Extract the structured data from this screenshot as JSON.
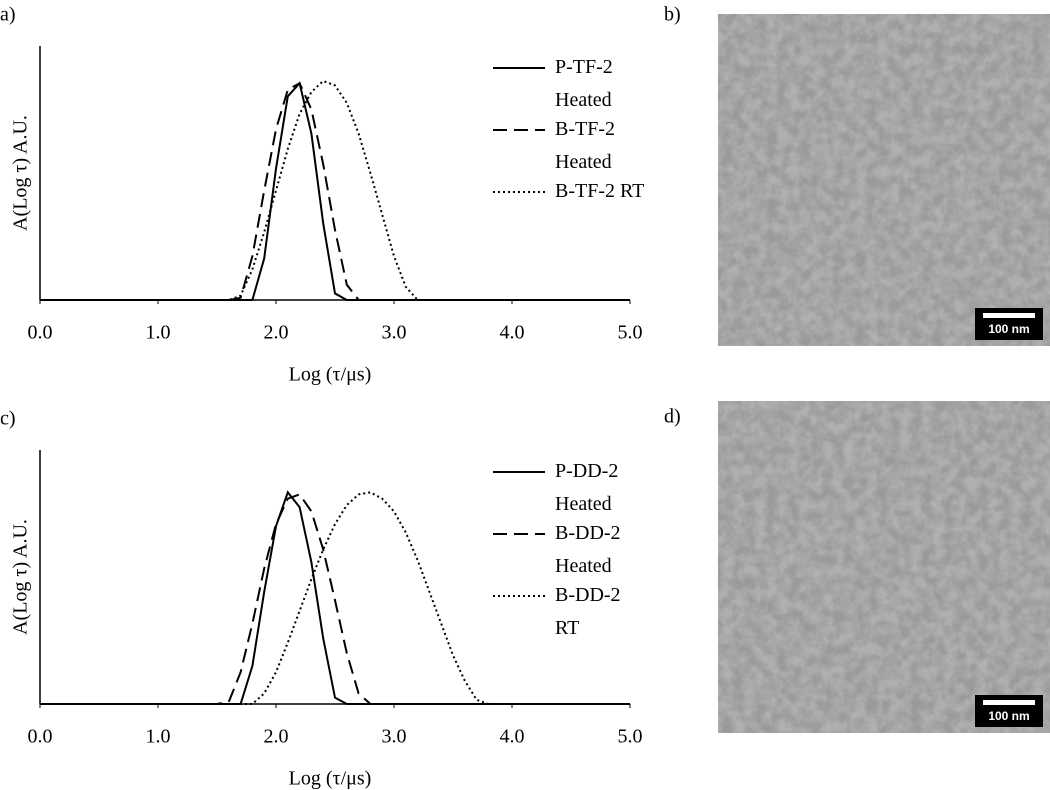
{
  "chart_data": [
    {
      "type": "line",
      "panel_label": "a)",
      "xlabel": "Log (τ/μs)",
      "ylabel": "A(Log τ) A.U.",
      "x": [
        0,
        1.5,
        1.6,
        1.7,
        1.8,
        1.9,
        2.0,
        2.1,
        2.2,
        2.3,
        2.4,
        2.5,
        2.6,
        2.7,
        2.8,
        2.9,
        3.0,
        3.1,
        3.2,
        3.3,
        3.4,
        3.5,
        3.6,
        3.7,
        3.8,
        5.0
      ],
      "xlim": [
        0,
        5
      ],
      "ylim": [
        0,
        1.16
      ],
      "xticks": [
        {
          "value": 0,
          "label": "0.0"
        },
        {
          "value": 1,
          "label": "1.0"
        },
        {
          "value": 2,
          "label": "2.0"
        },
        {
          "value": 3,
          "label": "3.0"
        },
        {
          "value": 4,
          "label": "4.0"
        },
        {
          "value": 5,
          "label": "5.0"
        }
      ],
      "series": [
        {
          "name": "P-TF-2 Heated",
          "color": "#000000",
          "linestyle": "solid",
          "values": [
            0,
            0,
            0,
            0,
            0,
            0.19,
            0.6,
            0.93,
            0.99,
            0.76,
            0.35,
            0.03,
            0,
            0,
            0,
            0,
            0,
            0,
            0,
            0,
            0,
            0,
            0,
            0,
            0,
            0
          ]
        },
        {
          "name": "B-TF-2 Heated",
          "color": "#000000",
          "linestyle": "dashed",
          "values": [
            0,
            0,
            0,
            0.01,
            0.2,
            0.5,
            0.78,
            0.96,
            0.99,
            0.87,
            0.62,
            0.32,
            0.07,
            0,
            0,
            0,
            0,
            0,
            0,
            0,
            0,
            0,
            0,
            0,
            0,
            0
          ]
        },
        {
          "name": "B-TF-2 RT",
          "color": "#000000",
          "linestyle": "dotted",
          "values": [
            0,
            0,
            0,
            0.02,
            0.14,
            0.31,
            0.5,
            0.69,
            0.85,
            0.95,
            1.0,
            0.98,
            0.9,
            0.76,
            0.58,
            0.39,
            0.2,
            0.06,
            0,
            0,
            0,
            0,
            0,
            0,
            0,
            0
          ]
        }
      ]
    },
    {
      "type": "line",
      "panel_label": "c)",
      "xlabel": "Log (τ/μs)",
      "ylabel": "A(Log τ) A.U.",
      "x": [
        0,
        1.5,
        1.6,
        1.7,
        1.8,
        1.9,
        2.0,
        2.1,
        2.2,
        2.3,
        2.4,
        2.5,
        2.6,
        2.7,
        2.8,
        2.9,
        3.0,
        3.1,
        3.2,
        3.3,
        3.4,
        3.5,
        3.6,
        3.7,
        3.8,
        5.0
      ],
      "xlim": [
        0,
        5
      ],
      "ylim": [
        0,
        1.2
      ],
      "xticks": [
        {
          "value": 0,
          "label": "0.0"
        },
        {
          "value": 1,
          "label": "1.0"
        },
        {
          "value": 2,
          "label": "2.0"
        },
        {
          "value": 3,
          "label": "3.0"
        },
        {
          "value": 4,
          "label": "4.0"
        },
        {
          "value": 5,
          "label": "5.0"
        }
      ],
      "series": [
        {
          "name": "P-DD-2 Heated",
          "color": "#000000",
          "linestyle": "solid",
          "values": [
            0,
            0,
            0,
            0,
            0.18,
            0.53,
            0.84,
            1.0,
            0.93,
            0.67,
            0.31,
            0.03,
            0,
            0,
            0,
            0,
            0,
            0,
            0,
            0,
            0,
            0,
            0,
            0,
            0,
            0
          ]
        },
        {
          "name": "B-DD-2 Heated",
          "color": "#000000",
          "linestyle": "dashed",
          "values": [
            0,
            0,
            0.01,
            0.15,
            0.38,
            0.64,
            0.85,
            0.97,
            0.99,
            0.91,
            0.73,
            0.49,
            0.24,
            0.05,
            0,
            0,
            0,
            0,
            0,
            0,
            0,
            0,
            0,
            0,
            0,
            0
          ]
        },
        {
          "name": "B-DD-2 RT",
          "color": "#000000",
          "linestyle": "dotted",
          "values": [
            0,
            0,
            0,
            0,
            0,
            0.05,
            0.15,
            0.29,
            0.44,
            0.59,
            0.73,
            0.85,
            0.94,
            0.99,
            1.0,
            0.97,
            0.91,
            0.81,
            0.68,
            0.53,
            0.38,
            0.23,
            0.11,
            0.02,
            0,
            0
          ]
        }
      ]
    }
  ],
  "images": [
    {
      "panel_label": "b)",
      "scale_bar": "100 nm"
    },
    {
      "panel_label": "d)",
      "scale_bar": "100 nm"
    }
  ]
}
